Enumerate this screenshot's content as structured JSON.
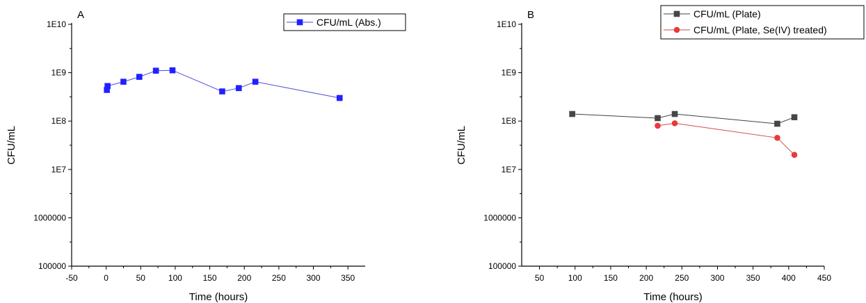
{
  "chart_data": [
    {
      "type": "scatter",
      "panel_label": "A",
      "xlabel": "Time (hours)",
      "ylabel": "CFU/mL",
      "xlim": [
        -50,
        375
      ],
      "ylim": [
        100000,
        10000000000
      ],
      "yscale": "log",
      "x_ticks": [
        -50,
        0,
        50,
        100,
        150,
        200,
        250,
        300,
        350
      ],
      "x_tick_labels": [
        "-50",
        "0",
        "50",
        "100",
        "150",
        "200",
        "250",
        "300",
        "350"
      ],
      "y_ticks": [
        100000,
        1000000,
        10000000,
        100000000,
        1000000000,
        10000000000
      ],
      "y_tick_labels": [
        "100000",
        "1000000",
        "1E7",
        "1E8",
        "1E9",
        "1E10"
      ],
      "grid": false,
      "legend_position": "top-right",
      "series": [
        {
          "name": "CFU/mL (Abs.)",
          "color": "#2121ff",
          "line_color": "#4a4ad8",
          "marker": "square",
          "x": [
            1,
            2,
            25,
            48,
            72,
            96,
            168,
            192,
            216,
            338
          ],
          "y": [
            440000000,
            530000000,
            650000000,
            820000000,
            1100000000,
            1120000000,
            410000000,
            480000000,
            650000000,
            300000000
          ]
        }
      ]
    },
    {
      "type": "scatter",
      "panel_label": "B",
      "xlabel": "Time (hours)",
      "ylabel": "CFU/mL",
      "xlim": [
        25,
        450
      ],
      "ylim": [
        100000,
        10000000000
      ],
      "yscale": "log",
      "x_ticks": [
        50,
        100,
        150,
        200,
        250,
        300,
        350,
        400,
        450
      ],
      "x_tick_labels": [
        "50",
        "100",
        "150",
        "200",
        "250",
        "300",
        "350",
        "400",
        "450"
      ],
      "y_ticks": [
        100000,
        1000000,
        10000000,
        100000000,
        1000000000,
        10000000000
      ],
      "y_tick_labels": [
        "100000",
        "1000000",
        "1E7",
        "1E8",
        "1E9",
        "1E10"
      ],
      "grid": false,
      "legend_position": "top-right",
      "series": [
        {
          "name": "CFU/mL (Plate)",
          "color": "#464646",
          "line_color": "#404040",
          "marker": "square",
          "x": [
            96,
            216,
            240,
            384,
            408
          ],
          "y": [
            140000000,
            115000000,
            140000000,
            88000000,
            120000000
          ]
        },
        {
          "name": "CFU/mL (Plate, Se(IV) treated)",
          "color": "#e8393c",
          "line_color": "#d04a4a",
          "marker": "circle",
          "x": [
            216,
            240,
            384,
            408
          ],
          "y": [
            80000000,
            90000000,
            45000000,
            20000000
          ]
        }
      ]
    }
  ]
}
